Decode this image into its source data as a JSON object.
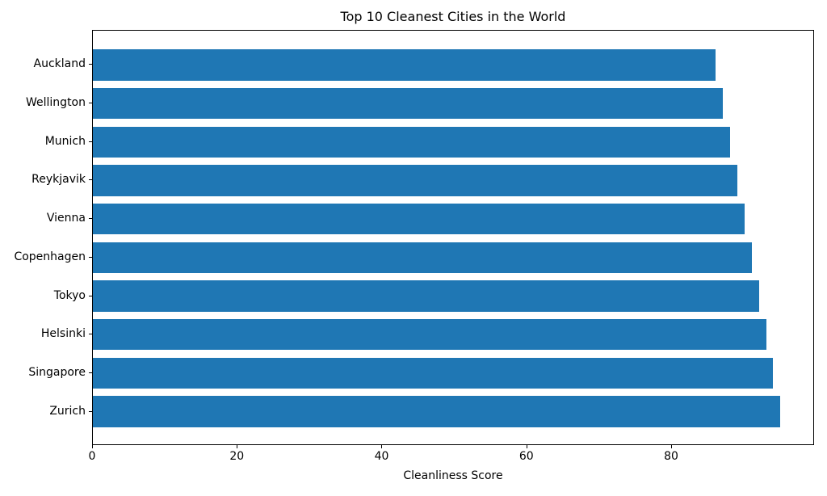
{
  "chart_data": {
    "type": "bar",
    "orientation": "horizontal",
    "title": "Top 10 Cleanest Cities in the World",
    "xlabel": "Cleanliness Score",
    "ylabel": "",
    "categories": [
      "Auckland",
      "Wellington",
      "Munich",
      "Reykjavik",
      "Vienna",
      "Copenhagen",
      "Tokyo",
      "Helsinki",
      "Singapore",
      "Zurich"
    ],
    "values": [
      86,
      87,
      88,
      89,
      90,
      91,
      92,
      93,
      94,
      95
    ],
    "xlim": [
      0,
      99.75
    ],
    "xticks": [
      0,
      20,
      40,
      60,
      80
    ],
    "bar_color": "#1f77b4",
    "text_color": "#000000",
    "background_color": "#ffffff",
    "grid": false,
    "legend": null
  }
}
